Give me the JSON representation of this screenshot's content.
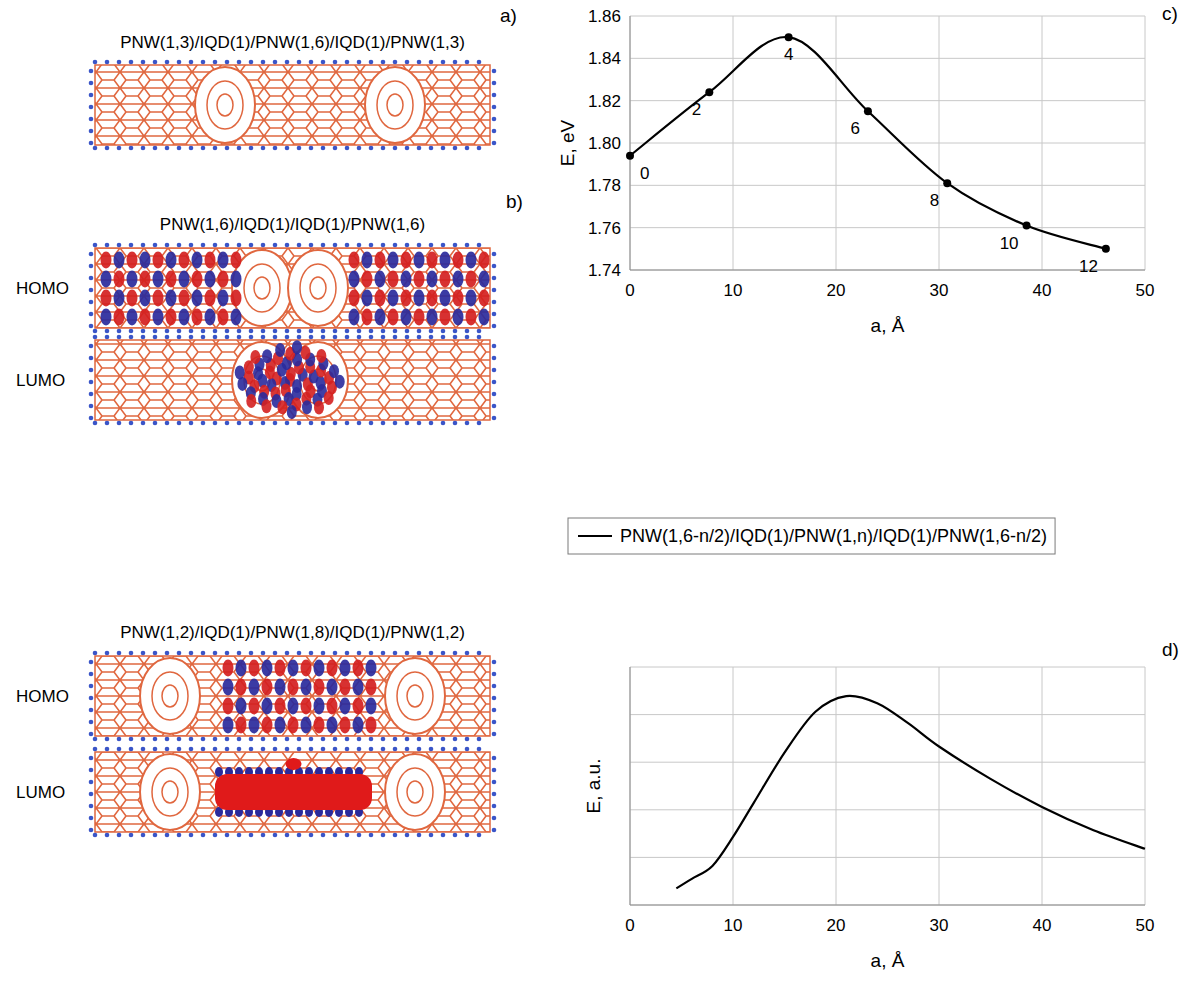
{
  "panels": [
    "a)",
    "b)",
    "c)",
    "d)"
  ],
  "structures": [
    {
      "title": "PNW(1,3)/IQD(1)/PNW(1,6)/IQD(1)/PNW(1,3)",
      "orbitals": []
    },
    {
      "title": "PNW(1,6)/IQD(1)/IQD(1)/PNW(1,6)",
      "orbitals": [
        "HOMO",
        "LUMO"
      ]
    },
    {
      "title": "PNW(1,2)/IQD(1)/PNW(1,8)/IQD(1)/PNW(1,2)",
      "orbitals": [
        "HOMO",
        "LUMO"
      ]
    }
  ],
  "chart_data": [
    {
      "type": "line",
      "xlabel": "a, Å",
      "ylabel": "E, eV",
      "x": [
        0,
        7.7,
        15.4,
        23.1,
        30.8,
        38.5,
        46.2
      ],
      "series": [
        {
          "name": "PNW(1,6-n/2)/IQD(1)/PNW(1,n)/IQD(1)/PNW(1,6-n/2)",
          "color": "#000000",
          "values": [
            1.794,
            1.824,
            1.85,
            1.815,
            1.781,
            1.761,
            1.75
          ],
          "point_labels": [
            "0",
            "2",
            "4",
            "6",
            "8",
            "10",
            "12"
          ],
          "marker": "circle",
          "line_style": "solid"
        }
      ],
      "xlim": [
        0,
        50
      ],
      "xticks": [
        0,
        10,
        20,
        30,
        40,
        50
      ],
      "ylim": [
        1.74,
        1.86
      ],
      "yticks": [
        1.74,
        1.76,
        1.78,
        {
          "value": 1.8,
          "label": "1.80"
        },
        1.82,
        1.84,
        1.86
      ],
      "grid": true,
      "legend": "bottom"
    },
    {
      "type": "line",
      "xlabel": "a, Å",
      "ylabel": "E, a.u.",
      "x": [
        4.5,
        6,
        8,
        10,
        12,
        15,
        18,
        21,
        24,
        27,
        30,
        35,
        40,
        45,
        50
      ],
      "series": [
        {
          "color": "#000000",
          "values": [
            0.35,
            0.55,
            0.82,
            1.43,
            2.14,
            3.2,
            4.06,
            4.39,
            4.24,
            3.82,
            3.33,
            2.65,
            2.06,
            1.57,
            1.18
          ],
          "line_style": "solid"
        }
      ],
      "xlim": [
        0,
        50
      ],
      "xticks": [
        0,
        10,
        20,
        30,
        40,
        50
      ],
      "ylim": [
        0,
        5
      ],
      "yticks": [
        0,
        1,
        2,
        3,
        4,
        5
      ],
      "grid": true,
      "tick_labels": "x"
    }
  ]
}
